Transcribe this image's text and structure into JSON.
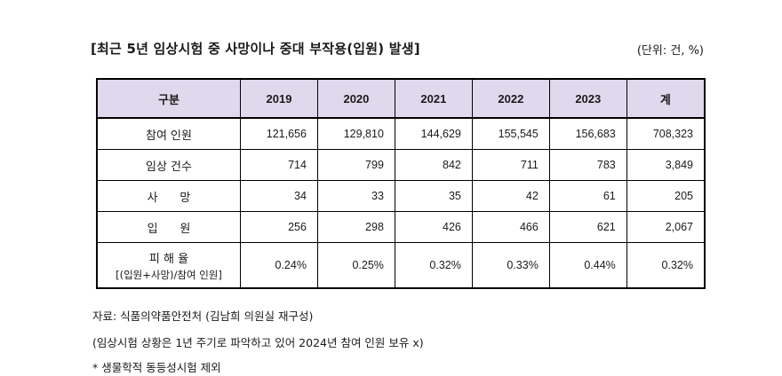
{
  "title": "[최근 5년 임상시험 중 사망이나 중대 부작용(입원) 발생]",
  "unit": "(단위: 건, %)",
  "table": {
    "headers": [
      "구분",
      "2019",
      "2020",
      "2021",
      "2022",
      "2023",
      "계"
    ],
    "rows": [
      {
        "label": "참여 인원",
        "values": [
          "121,656",
          "129,810",
          "144,629",
          "155,545",
          "156,683",
          "708,323"
        ]
      },
      {
        "label": "임상 건수",
        "values": [
          "714",
          "799",
          "842",
          "711",
          "783",
          "3,849"
        ]
      },
      {
        "label": "사      망",
        "values": [
          "34",
          "33",
          "35",
          "42",
          "61",
          "205"
        ]
      },
      {
        "label": "입      원",
        "values": [
          "256",
          "298",
          "426",
          "466",
          "621",
          "2,067"
        ]
      },
      {
        "label": "피 해 율",
        "sublabel": "[(입원+사망)/참여 인원]",
        "values": [
          "0.24%",
          "0.25%",
          "0.32%",
          "0.33%",
          "0.44%",
          "0.32%"
        ]
      }
    ]
  },
  "notes": [
    "자료: 식품의약품안전처 (김남희 의원실 재구성)",
    "(임상시험 상황은 1년 주기로 파악하고 있어 2024년 참여 인원 보유 x)",
    "* 생물학적 동등성시험 제외"
  ]
}
